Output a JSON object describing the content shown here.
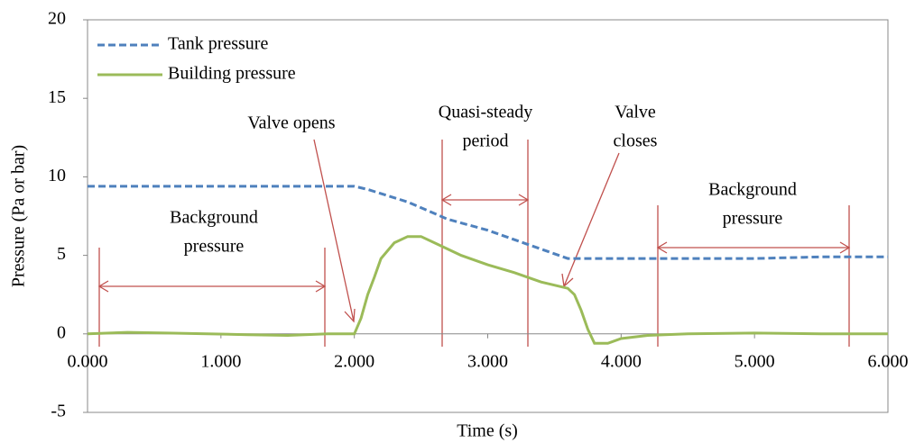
{
  "chart_data": {
    "type": "line",
    "x_label": "Time (s)",
    "y_label": "Pressure (Pa or bar)",
    "xlim": [
      0,
      6
    ],
    "ylim": [
      -5,
      20
    ],
    "xticks": [
      {
        "value": 0,
        "label": "0.000"
      },
      {
        "value": 1,
        "label": "1.000"
      },
      {
        "value": 2,
        "label": "2.000"
      },
      {
        "value": 3,
        "label": "3.000"
      },
      {
        "value": 4,
        "label": "4.000"
      },
      {
        "value": 5,
        "label": "5.000"
      },
      {
        "value": 6,
        "label": "6.000"
      }
    ],
    "yticks": [
      -5,
      0,
      5,
      10,
      15,
      20
    ],
    "grid": false,
    "legend": "upper left",
    "series": [
      {
        "name": "Tank pressure",
        "color": "#4f81bd",
        "dash": true,
        "x": [
          0,
          0.5,
          1,
          1.5,
          2.0,
          2.1,
          2.4,
          2.7,
          3.0,
          3.3,
          3.6,
          4.0,
          4.5,
          5.0,
          5.5,
          6.0
        ],
        "values": [
          9.4,
          9.4,
          9.4,
          9.4,
          9.4,
          9.2,
          8.4,
          7.3,
          6.6,
          5.7,
          4.8,
          4.8,
          4.8,
          4.8,
          4.9,
          4.9
        ]
      },
      {
        "name": "Building pressure",
        "color": "#9bbb59",
        "dash": false,
        "x": [
          0,
          0.3,
          0.6,
          0.9,
          1.2,
          1.5,
          1.8,
          2.0,
          2.05,
          2.1,
          2.15,
          2.2,
          2.3,
          2.4,
          2.5,
          2.6,
          2.7,
          2.8,
          3.0,
          3.2,
          3.4,
          3.5,
          3.6,
          3.65,
          3.7,
          3.75,
          3.8,
          3.9,
          4.0,
          4.2,
          4.5,
          5.0,
          5.5,
          6.0
        ],
        "values": [
          0,
          0.1,
          0.05,
          0,
          -0.05,
          -0.1,
          0,
          0,
          1.0,
          2.5,
          3.6,
          4.8,
          5.8,
          6.2,
          6.2,
          5.8,
          5.4,
          5.0,
          4.4,
          3.9,
          3.3,
          3.1,
          2.9,
          2.5,
          1.5,
          0.3,
          -0.6,
          -0.6,
          -0.3,
          -0.1,
          0,
          0.05,
          0,
          0
        ]
      }
    ],
    "annotations": [
      [
        "Valve opens"
      ],
      [
        "Quasi-steady",
        "period"
      ],
      [
        "Valve",
        "closes"
      ],
      [
        "Background",
        "pressure"
      ],
      [
        "Background",
        "pressure"
      ]
    ]
  }
}
